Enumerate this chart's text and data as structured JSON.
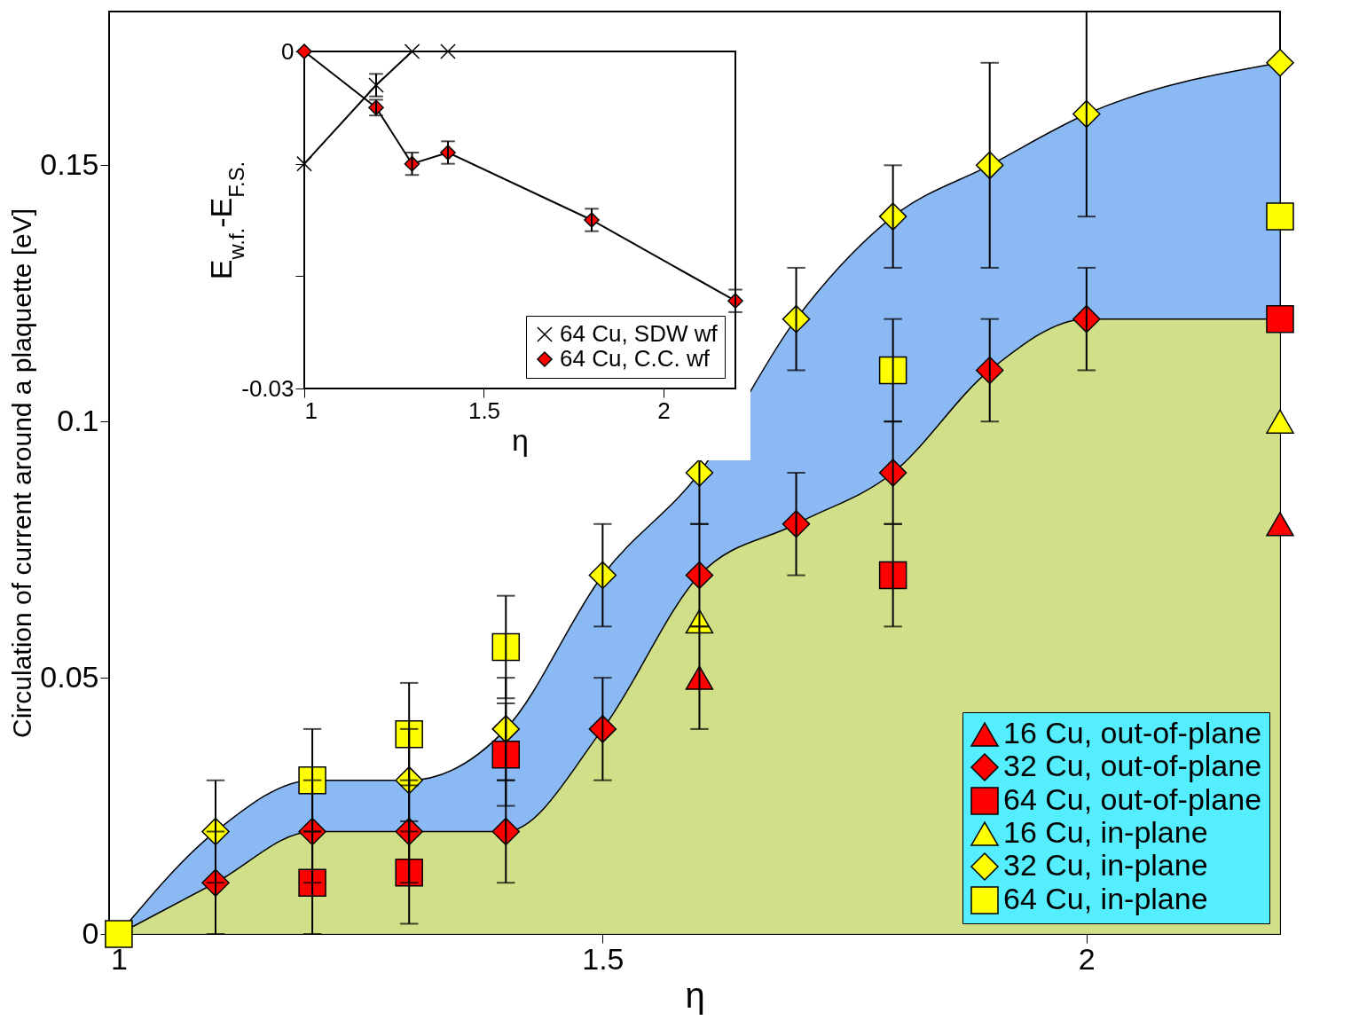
{
  "chart_data": [
    {
      "type": "scatter",
      "xlabel": "η",
      "ylabel": "Circulation of current around a plaquette [eV]",
      "xlim": [
        0.99,
        2.2
      ],
      "ylim": [
        0,
        0.18
      ],
      "xticks": [
        1,
        1.5,
        2
      ],
      "yticks": [
        0,
        0.05,
        0.1,
        0.15
      ],
      "grid": false,
      "legend": "bottom right",
      "series": [
        {
          "type": "area",
          "color": "#5a9bf0",
          "x": [
            1,
            1.1,
            1.2,
            1.3,
            1.4,
            1.5,
            1.6,
            1.7,
            1.8,
            1.9,
            2,
            2.2
          ],
          "values": [
            0,
            0.02,
            0.03,
            0.03,
            0.04,
            0.07,
            0.09,
            0.12,
            0.14,
            0.15,
            0.16,
            0.17
          ]
        },
        {
          "type": "area",
          "color": "#eef05a",
          "x": [
            1,
            1.1,
            1.2,
            1.3,
            1.4,
            1.5,
            1.6,
            1.7,
            1.8,
            1.9,
            2,
            2.2
          ],
          "values": [
            0,
            0.01,
            0.02,
            0.02,
            0.02,
            0.04,
            0.07,
            0.08,
            0.09,
            0.11,
            0.12,
            0.12
          ]
        },
        {
          "name": "16 Cu, out-of-plane",
          "color": "#ff0000",
          "marker": "triangle",
          "x": [
            1.6,
            2.2
          ],
          "values": [
            0.05,
            0.08
          ],
          "errors": [
            0.01,
            null
          ]
        },
        {
          "name": "32 Cu, out-of-plane",
          "color": "#ff0000",
          "marker": "diamond",
          "x": [
            1.1,
            1.2,
            1.3,
            1.4,
            1.5,
            1.6,
            1.7,
            1.8,
            1.9,
            2
          ],
          "values": [
            0.01,
            0.02,
            0.02,
            0.02,
            0.04,
            0.07,
            0.08,
            0.09,
            0.11,
            0.12
          ],
          "errors": [
            0.01,
            0.01,
            0.01,
            0.01,
            0.01,
            0.01,
            0.01,
            0.01,
            0.01,
            0.01
          ]
        },
        {
          "name": "64 Cu, out-of-plane",
          "color": "#ff0000",
          "marker": "square",
          "x": [
            1.2,
            1.3,
            1.4,
            1.8,
            2.2
          ],
          "values": [
            0.01,
            0.012,
            0.035,
            0.07,
            0.12
          ],
          "errors": [
            0.01,
            0.01,
            0.01,
            0.01,
            null
          ]
        },
        {
          "name": "16 Cu, in-plane",
          "color": "#ffff00",
          "marker": "triangle",
          "x": [
            1.6,
            2.2
          ],
          "values": [
            0.061,
            0.1
          ],
          "errors": [
            null,
            null
          ]
        },
        {
          "name": "32 Cu, in-plane",
          "color": "#ffff00",
          "marker": "diamond",
          "x": [
            1.1,
            1.3,
            1.4,
            1.5,
            1.6,
            1.7,
            1.8,
            1.9,
            2,
            2.2
          ],
          "values": [
            0.02,
            0.03,
            0.04,
            0.07,
            0.09,
            0.12,
            0.14,
            0.15,
            0.16,
            0.17
          ],
          "errors": [
            0.01,
            0.01,
            0.01,
            0.01,
            0.01,
            0.01,
            0.01,
            0.02,
            0.02,
            null
          ]
        },
        {
          "name": "64 Cu, in-plane",
          "color": "#ffff00",
          "marker": "square",
          "x": [
            1,
            1.2,
            1.3,
            1.4,
            1.8,
            2.2
          ],
          "values": [
            0,
            0.03,
            0.039,
            0.056,
            0.11,
            0.14
          ],
          "errors": [
            null,
            0.01,
            0.01,
            0.01,
            0.01,
            null
          ]
        }
      ]
    },
    {
      "type": "line",
      "xlabel": "η",
      "ylabel": "E$_{w.f.}$-E$_{F.S.}$",
      "xlim": [
        1,
        2.2
      ],
      "ylim": [
        -0.03,
        0
      ],
      "xticks": [
        1,
        1.5,
        2
      ],
      "yticks": [
        {
          "value": -0.03,
          "label": "-0.03"
        },
        {
          "value": -0.02,
          "label": null
        },
        {
          "value": -0.01,
          "label": null
        },
        {
          "value": 0,
          "label": "0"
        }
      ],
      "grid": false,
      "legend": "bottom right",
      "line_style": "solid",
      "series": [
        {
          "name": "64 Cu, SDW wf",
          "color": "#000000",
          "marker": "cross",
          "x": [
            1,
            1.2,
            1.3,
            1.4
          ],
          "values": [
            -0.01,
            -0.003,
            0,
            0
          ],
          "errors": [
            null,
            0.001,
            null,
            null
          ]
        },
        {
          "name": "64 Cu, C.C. wf",
          "color": "#ff0000",
          "marker": "diamond",
          "x": [
            1,
            1.2,
            1.3,
            1.4,
            1.8,
            2.2
          ],
          "values": [
            0,
            -0.005,
            -0.01,
            -0.009,
            -0.015,
            -0.0222
          ],
          "errors": [
            null,
            0.0007,
            0.001,
            0.001,
            0.001,
            0.001
          ]
        }
      ]
    }
  ]
}
